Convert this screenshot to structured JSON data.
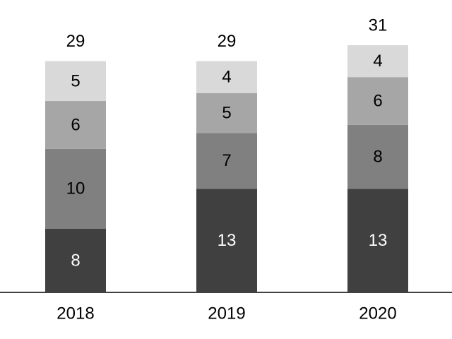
{
  "chart_data": {
    "type": "bar",
    "stacked": true,
    "title": "",
    "xlabel": "",
    "ylabel": "",
    "categories": [
      "2018",
      "2019",
      "2020"
    ],
    "series": [
      {
        "values": [
          8,
          13,
          13
        ],
        "color": "#404040",
        "label_color": "#ffffff"
      },
      {
        "values": [
          10,
          7,
          8
        ],
        "color": "#808080",
        "label_color": "#000000"
      },
      {
        "values": [
          6,
          5,
          6
        ],
        "color": "#a6a6a6",
        "label_color": "#000000"
      },
      {
        "values": [
          5,
          4,
          4
        ],
        "color": "#d9d9d9",
        "label_color": "#000000"
      }
    ],
    "totals": [
      29,
      29,
      31
    ],
    "ylim": [
      0,
      31
    ],
    "grid": false,
    "legend": "none",
    "colors": {
      "axis": "#404040",
      "text": "#000000",
      "background": "#ffffff"
    }
  }
}
